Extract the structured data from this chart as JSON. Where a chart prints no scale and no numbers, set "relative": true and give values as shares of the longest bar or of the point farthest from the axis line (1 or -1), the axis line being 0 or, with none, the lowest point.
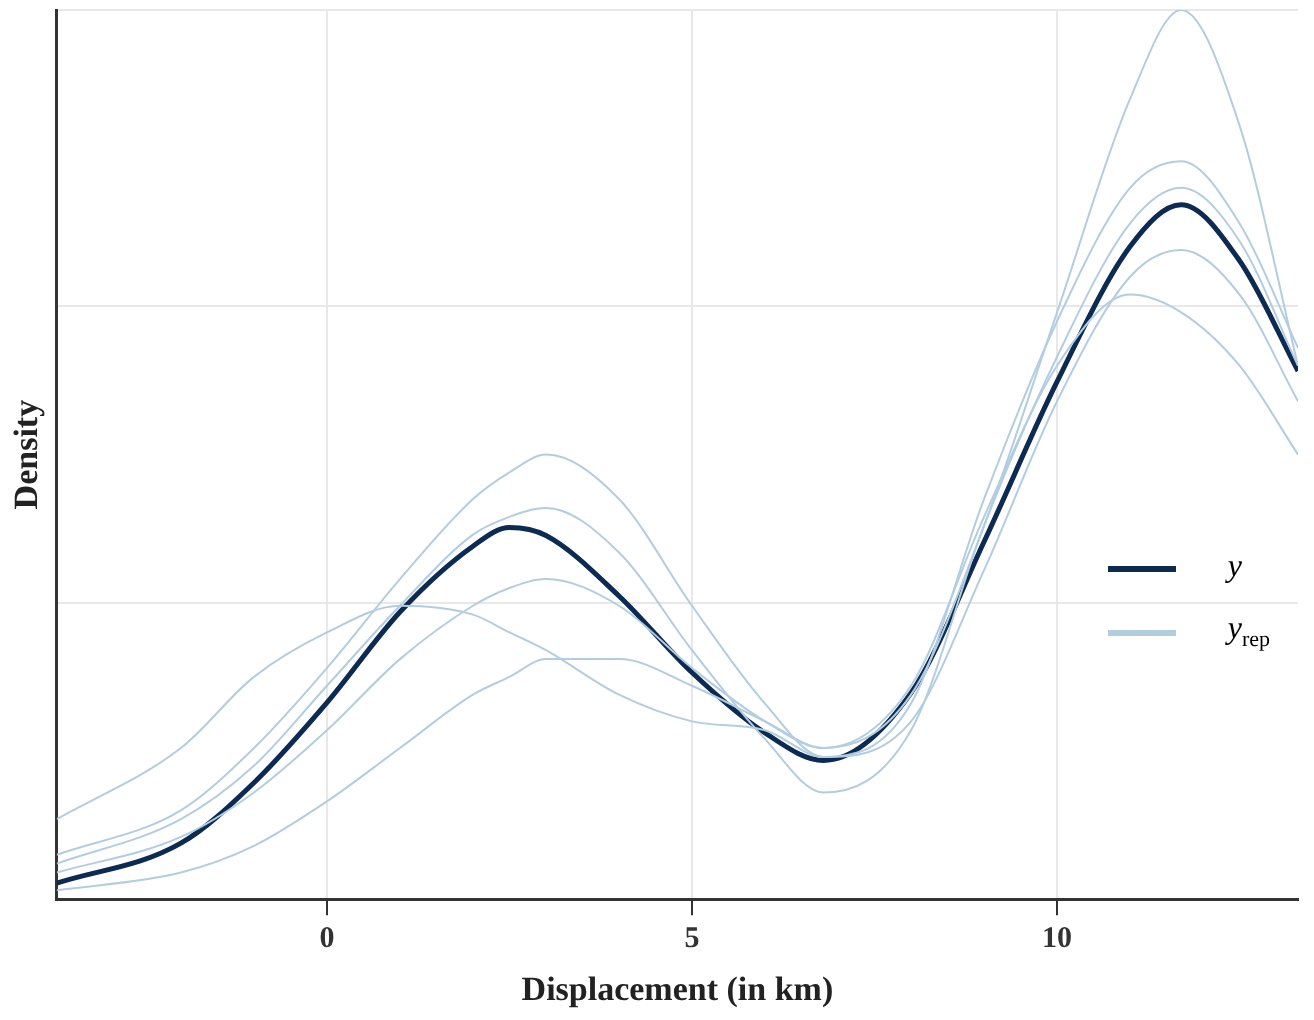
{
  "chart_data": {
    "type": "line",
    "xlabel": "Displacement (in km)",
    "ylabel": "Density",
    "relative": true,
    "grid": true,
    "legend": "right",
    "marker": "none",
    "line_style": "solid",
    "x": [
      -3.7,
      -2,
      -1,
      0,
      1,
      2,
      2.5,
      3,
      4,
      5,
      6,
      6.8,
      8,
      9,
      10,
      11,
      11.7,
      12.5,
      13.3
    ],
    "xlim": [
      -3.7,
      13.3
    ],
    "xticks": [
      0,
      5,
      10
    ],
    "series": [
      {
        "color": "#b3cde0",
        "values": [
          0.03,
          0.07,
          0.12,
          0.19,
          0.27,
          0.33,
          0.35,
          0.36,
          0.33,
          0.26,
          0.2,
          0.17,
          0.23,
          0.42,
          0.66,
          0.9,
          1.0,
          0.87,
          0.6
        ]
      },
      {
        "color": "#b3cde0",
        "values": [
          0.05,
          0.1,
          0.17,
          0.26,
          0.36,
          0.45,
          0.48,
          0.5,
          0.45,
          0.33,
          0.22,
          0.16,
          0.2,
          0.37,
          0.56,
          0.7,
          0.73,
          0.68,
          0.56
        ]
      },
      {
        "color": "#b3cde0",
        "values": [
          0.01,
          0.03,
          0.06,
          0.11,
          0.17,
          0.23,
          0.25,
          0.27,
          0.27,
          0.24,
          0.2,
          0.17,
          0.24,
          0.43,
          0.6,
          0.68,
          0.66,
          0.6,
          0.5
        ]
      },
      {
        "color": "#b3cde0",
        "values": [
          0.09,
          0.17,
          0.25,
          0.3,
          0.33,
          0.32,
          0.3,
          0.28,
          0.23,
          0.2,
          0.19,
          0.16,
          0.22,
          0.45,
          0.65,
          0.8,
          0.83,
          0.76,
          0.62
        ]
      },
      {
        "name": "y$_{rep}$",
        "color": "#b3cde0",
        "values": [
          0.04,
          0.09,
          0.15,
          0.24,
          0.33,
          0.41,
          0.43,
          0.44,
          0.39,
          0.28,
          0.18,
          0.12,
          0.19,
          0.42,
          0.61,
          0.76,
          0.8,
          0.74,
          0.6
        ]
      },
      {
        "name": "y",
        "color": "#0c2a52",
        "values": [
          0.018,
          0.063,
          0.131,
          0.221,
          0.323,
          0.397,
          0.418,
          0.409,
          0.341,
          0.255,
          0.187,
          0.156,
          0.232,
          0.402,
          0.582,
          0.734,
          0.781,
          0.718,
          0.594
        ]
      }
    ]
  }
}
